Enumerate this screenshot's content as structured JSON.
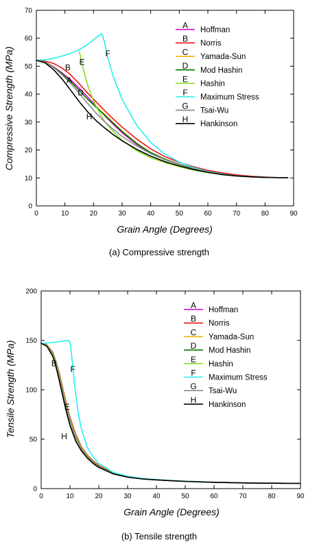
{
  "chart_data": [
    {
      "type": "line",
      "caption": "(a)   Compressive strength",
      "xlabel": "Grain Angle (Degrees)",
      "ylabel": "Compressive Strength (MPa)",
      "xlim": [
        0,
        90
      ],
      "ylim": [
        0,
        70
      ],
      "xticks": [
        0,
        10,
        20,
        30,
        40,
        50,
        60,
        70,
        80,
        90
      ],
      "yticks": [
        0,
        10,
        20,
        30,
        40,
        50,
        60,
        70
      ],
      "grid": false,
      "legend_position": "top-right",
      "series": [
        {
          "letter": "A",
          "name": "Hoffman",
          "color": "#cc00cc",
          "x": [
            0,
            3,
            6,
            9,
            12,
            15,
            18,
            21,
            24,
            27,
            30,
            35,
            40,
            45,
            50,
            55,
            60,
            65,
            70,
            75,
            80,
            85,
            88
          ],
          "y": [
            52.1,
            51.5,
            49.8,
            47.6,
            45.1,
            42.1,
            38.9,
            35.6,
            32.2,
            29.1,
            26.2,
            22.1,
            18.9,
            16.6,
            14.9,
            13.3,
            12.1,
            11.3,
            10.8,
            10.4,
            10.2,
            10.1,
            10.1
          ]
        },
        {
          "letter": "B",
          "name": "Norris",
          "color": "#ee1111",
          "x": [
            0,
            3,
            6,
            9,
            12,
            15,
            18,
            21,
            24,
            27,
            30,
            35,
            40,
            45,
            50,
            55,
            60,
            65,
            70,
            75,
            80,
            85,
            88
          ],
          "y": [
            52.1,
            51.8,
            51.0,
            49.3,
            46.9,
            43.7,
            40.3,
            37.1,
            34.0,
            31.0,
            28.2,
            24.0,
            20.4,
            17.6,
            15.6,
            14.0,
            12.7,
            11.8,
            11.1,
            10.6,
            10.3,
            10.1,
            10.1
          ]
        },
        {
          "letter": "C",
          "name": "Yamada-Sun",
          "color": "#f0b400",
          "x": [
            0,
            3,
            6,
            9,
            12,
            15,
            18,
            21,
            24,
            27,
            30,
            35,
            40,
            45,
            50,
            55,
            60,
            65,
            70,
            75,
            80,
            85,
            88
          ],
          "y": [
            52.1,
            51.5,
            49.7,
            47.3,
            44.5,
            41.3,
            38.1,
            35.4,
            32.7,
            29.7,
            26.8,
            22.5,
            19.1,
            16.7,
            14.9,
            13.4,
            12.2,
            11.4,
            10.8,
            10.4,
            10.2,
            10.1,
            10.1
          ]
        },
        {
          "letter": "D",
          "name": "Mod Hashin",
          "color": "#007a00",
          "x": [
            0,
            3,
            6,
            9,
            12,
            15,
            18,
            21,
            24,
            27,
            30,
            35,
            40,
            45,
            50,
            55,
            60,
            65,
            70,
            75,
            80,
            85,
            88
          ],
          "y": [
            52.1,
            51.5,
            49.7,
            47.3,
            44.5,
            41.3,
            38.1,
            35.2,
            32.4,
            29.5,
            26.6,
            22.4,
            19.1,
            16.7,
            14.9,
            13.4,
            12.2,
            11.4,
            10.8,
            10.4,
            10.2,
            10.1,
            10.1
          ]
        },
        {
          "letter": "E",
          "name": "Hashin",
          "color": "#88dd22",
          "x": [
            15,
            15.5,
            16,
            18,
            20,
            22,
            24,
            27,
            30,
            35,
            40,
            45,
            50,
            55,
            60,
            65,
            70,
            75,
            80,
            85,
            88
          ],
          "y": [
            55.2,
            53.5,
            50.5,
            43.0,
            37.5,
            33.5,
            30.0,
            26.5,
            23.5,
            19.8,
            17.2,
            15.5,
            14.0,
            12.8,
            11.9,
            11.2,
            10.7,
            10.4,
            10.2,
            10.1,
            10.1
          ]
        },
        {
          "letter": "F",
          "name": "Maximum Stress",
          "color": "#22eeee",
          "x": [
            0,
            3,
            6,
            9,
            12,
            15,
            18,
            20,
            22,
            23,
            24,
            25,
            27,
            30,
            35,
            40,
            45,
            50,
            55,
            60,
            65,
            70,
            75,
            80,
            85,
            88
          ],
          "y": [
            52.1,
            52.3,
            52.8,
            53.6,
            54.6,
            55.9,
            57.8,
            59.4,
            61.1,
            61.5,
            58.0,
            53.0,
            46.0,
            38.2,
            29.0,
            22.7,
            18.5,
            15.7,
            13.7,
            12.3,
            11.4,
            10.8,
            10.4,
            10.2,
            10.1,
            10.1
          ]
        },
        {
          "letter": "G",
          "name": "Tsai-Wu",
          "color": "#888888",
          "x": [
            0,
            3,
            6,
            9,
            12,
            15,
            18,
            21,
            24,
            27,
            30,
            35,
            40,
            45,
            50,
            55,
            60,
            65,
            70,
            75,
            80,
            85,
            88
          ],
          "y": [
            52.1,
            51.5,
            49.6,
            46.9,
            43.8,
            40.3,
            36.6,
            33.1,
            30.0,
            27.3,
            24.9,
            21.5,
            18.7,
            16.5,
            14.8,
            13.3,
            12.1,
            11.3,
            10.8,
            10.4,
            10.2,
            10.1,
            10.1
          ]
        },
        {
          "letter": "H",
          "name": "Hankinson",
          "color": "#000000",
          "x": [
            0,
            3,
            6,
            9,
            12,
            15,
            18,
            21,
            24,
            27,
            30,
            35,
            40,
            45,
            50,
            55,
            60,
            65,
            70,
            75,
            80,
            85,
            88
          ],
          "y": [
            52.1,
            51.2,
            48.8,
            45.4,
            41.4,
            37.3,
            33.6,
            30.4,
            27.8,
            25.4,
            23.3,
            20.3,
            17.8,
            15.8,
            14.3,
            13.0,
            12.0,
            11.2,
            10.7,
            10.4,
            10.2,
            10.1,
            10.1
          ]
        }
      ],
      "curve_labels": [
        {
          "text": "B",
          "x": 11,
          "y": 48.5
        },
        {
          "text": "A",
          "x": 11.5,
          "y": 44
        },
        {
          "text": "E",
          "x": 16,
          "y": 50.5
        },
        {
          "text": "F",
          "x": 25,
          "y": 53.5
        },
        {
          "text": "D",
          "x": 15.5,
          "y": 39.5
        },
        {
          "text": "H",
          "x": 18.5,
          "y": 31
        }
      ]
    },
    {
      "type": "line",
      "caption": "(b)   Tensile strength",
      "xlabel": "Grain Angle (Degrees)",
      "ylabel": "Tensile Strength (MPa)",
      "xlim": [
        0,
        90
      ],
      "ylim": [
        0,
        200
      ],
      "xticks": [
        0,
        10,
        20,
        30,
        40,
        50,
        60,
        70,
        80,
        90
      ],
      "yticks": [
        0,
        50,
        100,
        150,
        200
      ],
      "grid": false,
      "legend_position": "top-right",
      "series": [
        {
          "letter": "A",
          "name": "Hoffman",
          "color": "#cc00cc",
          "x": [
            0,
            2,
            4,
            5,
            6,
            7,
            8,
            9,
            10,
            12,
            14,
            16,
            18,
            20,
            25,
            30,
            35,
            40,
            45,
            50,
            60,
            70,
            80,
            90
          ],
          "y": [
            147,
            145,
            137,
            129,
            118,
            106,
            93,
            81,
            70,
            53,
            41,
            33,
            27,
            22.5,
            15.3,
            11.8,
            10.0,
            8.9,
            8.0,
            7.4,
            6.4,
            5.8,
            5.4,
            5.3
          ]
        },
        {
          "letter": "B",
          "name": "Norris",
          "color": "#ee1111",
          "x": [
            0,
            2,
            4,
            5,
            6,
            7,
            8,
            9,
            10,
            12,
            14,
            16,
            18,
            20,
            25,
            30,
            35,
            40,
            45,
            50,
            60,
            70,
            80,
            90
          ],
          "y": [
            147,
            145.5,
            138,
            130,
            120,
            108,
            95,
            83,
            72,
            55,
            42,
            34,
            28,
            23.5,
            15.8,
            12.0,
            10.1,
            9.0,
            8.1,
            7.4,
            6.4,
            5.8,
            5.4,
            5.3
          ]
        },
        {
          "letter": "C",
          "name": "Yamada-Sun",
          "color": "#f0b400",
          "x": [
            0,
            2,
            4,
            5,
            6,
            7,
            8,
            9,
            10,
            12,
            14,
            16,
            18,
            20,
            25,
            30,
            35,
            40,
            45,
            50,
            60,
            70,
            80,
            90
          ],
          "y": [
            147,
            145,
            137,
            129,
            118,
            106,
            93,
            81,
            70,
            53,
            41,
            33,
            27,
            22.5,
            15.3,
            11.8,
            10.0,
            8.9,
            8.0,
            7.4,
            6.4,
            5.8,
            5.4,
            5.3
          ]
        },
        {
          "letter": "D",
          "name": "Mod Hashin",
          "color": "#007a00",
          "x": [
            0,
            2,
            4,
            5,
            6,
            7,
            8,
            9,
            10,
            12,
            14,
            16,
            18,
            20,
            25,
            30,
            35,
            40,
            45,
            50,
            60,
            70,
            80,
            90
          ],
          "y": [
            147,
            145,
            137,
            129,
            118,
            106,
            93,
            81,
            70,
            53,
            41,
            33,
            27,
            22.5,
            15.3,
            11.8,
            10.0,
            8.9,
            8.0,
            7.4,
            6.4,
            5.8,
            5.4,
            5.3
          ]
        },
        {
          "letter": "E",
          "name": "Hashin",
          "color": "#88dd22",
          "x": [
            0,
            2,
            4,
            5,
            6,
            7,
            8,
            9,
            10,
            12,
            14,
            16,
            18,
            20,
            25,
            30,
            35,
            40,
            45,
            50,
            60,
            70,
            80,
            90
          ],
          "y": [
            147,
            145,
            137,
            129,
            118,
            106,
            93,
            81,
            70,
            53,
            41,
            33,
            27,
            22.5,
            15.3,
            11.8,
            10.0,
            8.9,
            8.0,
            7.4,
            6.4,
            5.8,
            5.4,
            5.3
          ]
        },
        {
          "letter": "F",
          "name": "Maximum Stress",
          "color": "#22eeee",
          "x": [
            0,
            2,
            4,
            6,
            8,
            9,
            9.5,
            10,
            10.5,
            11,
            12,
            13,
            14,
            16,
            18,
            20,
            25,
            30,
            35,
            40,
            45,
            50,
            60,
            70,
            80,
            90
          ],
          "y": [
            147,
            147.3,
            147.8,
            148.5,
            149.4,
            149.8,
            150,
            148,
            138,
            122,
            95,
            74,
            60,
            42,
            32,
            25.5,
            16.5,
            12.5,
            10.4,
            9.1,
            8.2,
            7.5,
            6.5,
            5.8,
            5.4,
            5.3
          ]
        },
        {
          "letter": "G",
          "name": "Tsai-Wu",
          "color": "#888888",
          "x": [
            0,
            2,
            4,
            5,
            6,
            7,
            8,
            9,
            10,
            12,
            14,
            16,
            18,
            20,
            25,
            30,
            35,
            40,
            45,
            50,
            60,
            70,
            80,
            90
          ],
          "y": [
            147,
            144.5,
            136,
            127,
            116,
            104,
            91,
            79,
            68,
            51,
            40,
            32,
            26.5,
            22,
            15.1,
            11.7,
            9.9,
            8.8,
            8.0,
            7.3,
            6.4,
            5.8,
            5.4,
            5.3
          ]
        },
        {
          "letter": "H",
          "name": "Hankinson",
          "color": "#000000",
          "x": [
            0,
            2,
            4,
            5,
            6,
            7,
            8,
            9,
            10,
            12,
            14,
            16,
            18,
            20,
            25,
            30,
            35,
            40,
            45,
            50,
            60,
            70,
            80,
            90
          ],
          "y": [
            147,
            144,
            134,
            125,
            113,
            100,
            87,
            75,
            64,
            48,
            38,
            31,
            25.5,
            21.5,
            14.9,
            11.6,
            9.8,
            8.8,
            8.0,
            7.3,
            6.4,
            5.8,
            5.4,
            5.3
          ]
        }
      ],
      "curve_labels": [
        {
          "text": "B",
          "x": 4.5,
          "y": 124
        },
        {
          "text": "F",
          "x": 11,
          "y": 118
        },
        {
          "text": "E",
          "x": 9,
          "y": 80
        },
        {
          "text": "H",
          "x": 8,
          "y": 50
        }
      ]
    }
  ]
}
